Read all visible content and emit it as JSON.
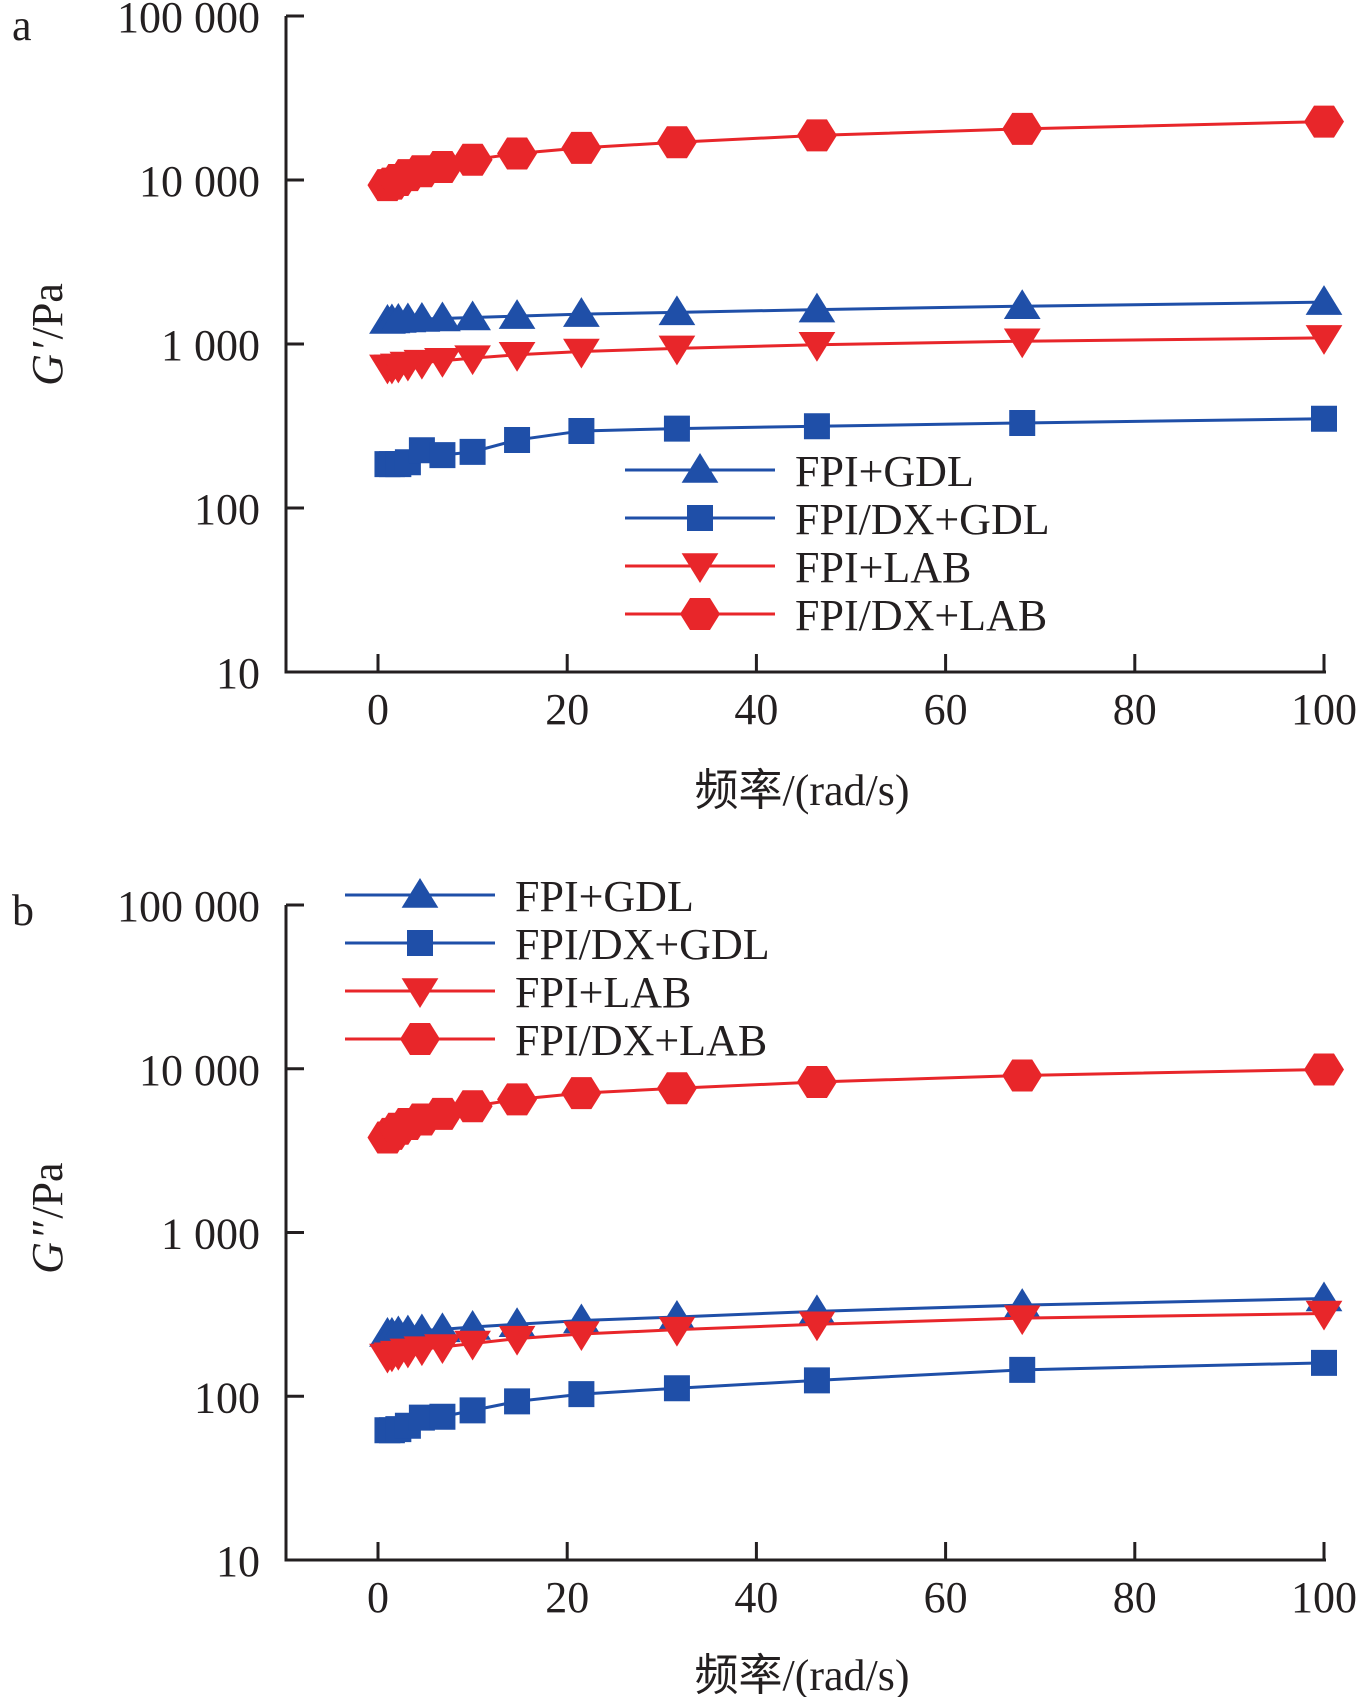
{
  "chart_data": [
    {
      "panel": "a",
      "type": "line",
      "xlabel": "频率/(rad/s)",
      "ylabel": "G′/Pa",
      "yscale": "log",
      "xlim": [
        -10,
        100
      ],
      "ylim": [
        10,
        100000
      ],
      "x_ticks": [
        "0",
        "20",
        "40",
        "60",
        "80",
        "100"
      ],
      "y_ticks": [
        "10",
        "100",
        "1 000",
        "10 000",
        "100 000"
      ],
      "legend_position": "bottom-right",
      "x": [
        1,
        1.47,
        2.15,
        3.16,
        4.64,
        6.81,
        10,
        14.7,
        21.5,
        31.6,
        46.4,
        68.1,
        100
      ],
      "series": [
        {
          "name": "FPI+GDL",
          "color": "#1f4fa8",
          "marker": "triangle-up",
          "values": [
            1380,
            1390,
            1400,
            1410,
            1420,
            1430,
            1450,
            1480,
            1520,
            1560,
            1620,
            1700,
            1800
          ]
        },
        {
          "name": "FPI/DX+GDL",
          "color": "#1f4fa8",
          "marker": "square",
          "values": [
            185,
            185,
            185,
            190,
            225,
            210,
            220,
            260,
            295,
            305,
            315,
            330,
            350
          ]
        },
        {
          "name": "FPI+LAB",
          "color": "#e8262a",
          "marker": "triangle-down",
          "values": [
            720,
            720,
            730,
            750,
            770,
            790,
            820,
            860,
            900,
            940,
            990,
            1040,
            1090
          ]
        },
        {
          "name": "FPI/DX+LAB",
          "color": "#e8262a",
          "marker": "hexagon",
          "values": [
            9300,
            9500,
            10000,
            10700,
            11300,
            12000,
            13300,
            14500,
            15700,
            17000,
            18700,
            20500,
            22700
          ]
        }
      ]
    },
    {
      "panel": "b",
      "type": "line",
      "xlabel": "频率/(rad/s)",
      "ylabel": "G″/Pa",
      "yscale": "log",
      "xlim": [
        -10,
        100
      ],
      "ylim": [
        10,
        100000
      ],
      "x_ticks": [
        "0",
        "20",
        "40",
        "60",
        "80",
        "100"
      ],
      "y_ticks": [
        "10",
        "100",
        "1 000",
        "10 000",
        "100 000"
      ],
      "legend_position": "top-left",
      "x": [
        1,
        1.47,
        2.15,
        3.16,
        4.64,
        6.81,
        10,
        14.7,
        21.5,
        31.6,
        46.4,
        68.1,
        100
      ],
      "series": [
        {
          "name": "FPI+GDL",
          "color": "#1f4fa8",
          "marker": "triangle-up",
          "values": [
            240,
            240,
            245,
            248,
            252,
            256,
            265,
            275,
            290,
            305,
            330,
            360,
            395
          ]
        },
        {
          "name": "FPI/DX+GDL",
          "color": "#1f4fa8",
          "marker": "square",
          "values": [
            62,
            62,
            63,
            66,
            74,
            75,
            82,
            93,
            103,
            112,
            125,
            145,
            160
          ]
        },
        {
          "name": "FPI+LAB",
          "color": "#e8262a",
          "marker": "triangle-down",
          "values": [
            175,
            178,
            182,
            188,
            194,
            200,
            210,
            225,
            240,
            255,
            275,
            300,
            320
          ]
        },
        {
          "name": "FPI/DX+LAB",
          "color": "#e8262a",
          "marker": "hexagon",
          "values": [
            3800,
            4000,
            4300,
            4600,
            4900,
            5300,
            5900,
            6500,
            7100,
            7600,
            8300,
            9100,
            9900
          ]
        }
      ]
    }
  ]
}
